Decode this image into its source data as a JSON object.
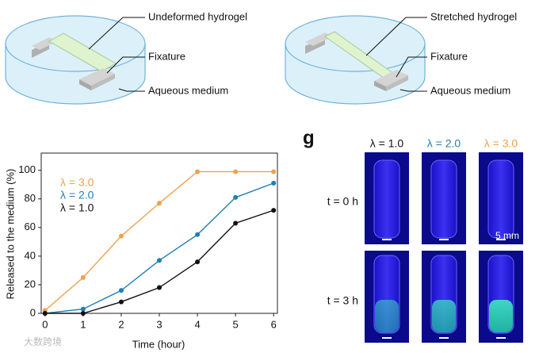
{
  "diagram_left": {
    "labels": [
      "Undeformed hydrogel",
      "Fixature",
      "Aqueous medium"
    ]
  },
  "diagram_right": {
    "labels": [
      "Stretched hydrogel",
      "Fixature",
      "Aqueous medium"
    ]
  },
  "chart_data": {
    "type": "line",
    "xlabel": "Time (hour)",
    "ylabel": "Released to the medium (%)",
    "x": [
      0,
      1,
      2,
      3,
      4,
      5,
      6
    ],
    "xlim": [
      -0.1,
      6.1
    ],
    "xticks": [
      0,
      1,
      2,
      3,
      4,
      5,
      6
    ],
    "ylim": [
      0,
      112
    ],
    "yticks": [
      0,
      20,
      40,
      60,
      80,
      100
    ],
    "series": [
      {
        "name": "λ = 3.0",
        "color": "#f0a04b",
        "values": [
          2,
          25,
          54,
          77,
          99,
          99,
          99
        ]
      },
      {
        "name": "λ = 2.0",
        "color": "#1f7fb4",
        "values": [
          0,
          3,
          16,
          37,
          55,
          81,
          91
        ]
      },
      {
        "name": "λ = 1.0",
        "color": "#111111",
        "values": [
          0,
          0,
          8,
          18,
          36,
          63,
          72
        ]
      }
    ]
  },
  "panel_g": {
    "label": "g",
    "columns": [
      {
        "text": "λ = 1.0",
        "color": "#111111"
      },
      {
        "text": "λ = 2.0",
        "color": "#1f7fb4"
      },
      {
        "text": "λ = 3.0",
        "color": "#f0a04b"
      }
    ],
    "rows": [
      "t = 0 h",
      "t = 3 h"
    ],
    "scale_bar": "5 mm"
  },
  "watermark": "大数跨境"
}
